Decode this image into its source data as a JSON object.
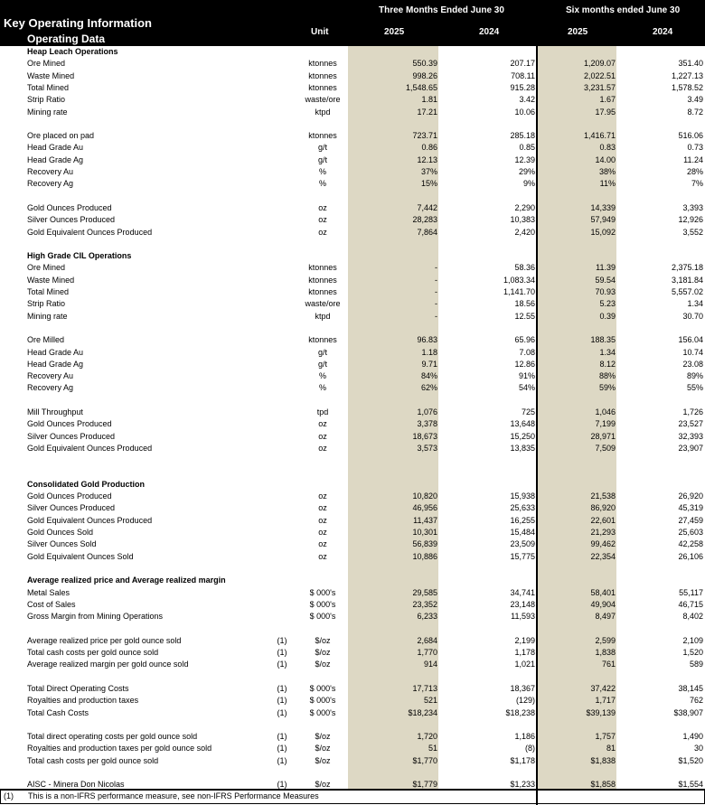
{
  "header": {
    "title": "Key Operating Information",
    "subtitle": "Operating Data",
    "unit_label": "Unit",
    "three_months": "Three Months Ended June 30",
    "six_months": "Six months ended June 30",
    "years": [
      "2025",
      "2024",
      "2025",
      "2024"
    ]
  },
  "colors": {
    "header_bg": "#000000",
    "shade": "#ddd8c4"
  },
  "rows": [
    {
      "heading": "Heap Leach Operations"
    },
    {
      "label": "Ore Mined",
      "unit": "ktonnes",
      "values": [
        "550.39",
        "207.17",
        "1,209.07",
        "351.40"
      ]
    },
    {
      "label": "Waste Mined",
      "unit": "ktonnes",
      "values": [
        "998.26",
        "708.11",
        "2,022.51",
        "1,227.13"
      ]
    },
    {
      "label": "Total Mined",
      "unit": "ktonnes",
      "values": [
        "1,548.65",
        "915.28",
        "3,231.57",
        "1,578.52"
      ]
    },
    {
      "label": "Strip Ratio",
      "unit": "waste/ore",
      "values": [
        "1.81",
        "3.42",
        "1.67",
        "3.49"
      ]
    },
    {
      "label": "Mining rate",
      "unit": "ktpd",
      "values": [
        "17.21",
        "10.06",
        "17.95",
        "8.72"
      ]
    },
    null,
    {
      "label": "Ore placed on pad",
      "unit": "ktonnes",
      "values": [
        "723.71",
        "285.18",
        "1,416.71",
        "516.06"
      ]
    },
    {
      "label": "Head Grade Au",
      "unit": "g/t",
      "values": [
        "0.86",
        "0.85",
        "0.83",
        "0.73"
      ]
    },
    {
      "label": "Head Grade Ag",
      "unit": "g/t",
      "values": [
        "12.13",
        "12.39",
        "14.00",
        "11.24"
      ]
    },
    {
      "label": "Recovery Au",
      "unit": "%",
      "values": [
        "37%",
        "29%",
        "38%",
        "28%"
      ]
    },
    {
      "label": "Recovery Ag",
      "unit": "%",
      "values": [
        "15%",
        "9%",
        "11%",
        "7%"
      ]
    },
    null,
    {
      "label": "Gold Ounces Produced",
      "unit": "oz",
      "values": [
        "7,442",
        "2,290",
        "14,339",
        "3,393"
      ]
    },
    {
      "label": "Silver Ounces Produced",
      "unit": "oz",
      "values": [
        "28,283",
        "10,383",
        "57,949",
        "12,926"
      ]
    },
    {
      "label": "Gold Equivalent Ounces Produced",
      "unit": "oz",
      "values": [
        "7,864",
        "2,420",
        "15,092",
        "3,552"
      ]
    },
    null,
    {
      "heading": "High Grade CIL Operations"
    },
    {
      "label": "Ore Mined",
      "unit": "ktonnes",
      "values": [
        "-",
        "58.36",
        "11.39",
        "2,375.18"
      ]
    },
    {
      "label": "Waste Mined",
      "unit": "ktonnes",
      "values": [
        "-",
        "1,083.34",
        "59.54",
        "3,181.84"
      ]
    },
    {
      "label": "Total Mined",
      "unit": "ktonnes",
      "values": [
        "-",
        "1,141.70",
        "70.93",
        "5,557.02"
      ]
    },
    {
      "label": "Strip Ratio",
      "unit": "waste/ore",
      "values": [
        "-",
        "18.56",
        "5.23",
        "1.34"
      ]
    },
    {
      "label": "Mining rate",
      "unit": "ktpd",
      "values": [
        "-",
        "12.55",
        "0.39",
        "30.70"
      ]
    },
    null,
    {
      "label": "Ore Milled",
      "unit": "ktonnes",
      "values": [
        "96.83",
        "65.96",
        "188.35",
        "156.04"
      ]
    },
    {
      "label": "Head Grade Au",
      "unit": "g/t",
      "values": [
        "1.18",
        "7.08",
        "1.34",
        "10.74"
      ]
    },
    {
      "label": "Head Grade Ag",
      "unit": "g/t",
      "values": [
        "9.71",
        "12.86",
        "8.12",
        "23.08"
      ]
    },
    {
      "label": "Recovery Au",
      "unit": "%",
      "values": [
        "84%",
        "91%",
        "88%",
        "89%"
      ]
    },
    {
      "label": "Recovery Ag",
      "unit": "%",
      "values": [
        "62%",
        "54%",
        "59%",
        "55%"
      ]
    },
    null,
    {
      "label": "Mill Throughput",
      "unit": "tpd",
      "values": [
        "1,076",
        "725",
        "1,046",
        "1,726"
      ]
    },
    {
      "label": "Gold Ounces Produced",
      "unit": "oz",
      "values": [
        "3,378",
        "13,648",
        "7,199",
        "23,527"
      ]
    },
    {
      "label": "Silver Ounces Produced",
      "unit": "oz",
      "values": [
        "18,673",
        "15,250",
        "28,971",
        "32,393"
      ]
    },
    {
      "label": "Gold Equivalent Ounces Produced",
      "unit": "oz",
      "values": [
        "3,573",
        "13,835",
        "7,509",
        "23,907"
      ]
    },
    null,
    null,
    {
      "heading": "Consolidated Gold Production"
    },
    {
      "label": "Gold Ounces Produced",
      "unit": "oz",
      "values": [
        "10,820",
        "15,938",
        "21,538",
        "26,920"
      ]
    },
    {
      "label": "Silver Ounces Produced",
      "unit": "oz",
      "values": [
        "46,956",
        "25,633",
        "86,920",
        "45,319"
      ]
    },
    {
      "label": "Gold Equivalent Ounces Produced",
      "unit": "oz",
      "values": [
        "11,437",
        "16,255",
        "22,601",
        "27,459"
      ]
    },
    {
      "label": "Gold Ounces Sold",
      "unit": "oz",
      "values": [
        "10,301",
        "15,484",
        "21,293",
        "25,603"
      ]
    },
    {
      "label": "Silver Ounces Sold",
      "unit": "oz",
      "values": [
        "56,839",
        "23,509",
        "99,462",
        "42,258"
      ]
    },
    {
      "label": "Gold Equivalent Ounces Sold",
      "unit": "oz",
      "values": [
        "10,886",
        "15,775",
        "22,354",
        "26,106"
      ]
    },
    null,
    {
      "heading": "Average realized price and Average realized margin"
    },
    {
      "label": "Metal Sales",
      "unit": "$ 000's",
      "values": [
        "29,585",
        "34,741",
        "58,401",
        "55,117"
      ]
    },
    {
      "label": "Cost of Sales",
      "unit": "$ 000's",
      "values": [
        "23,352",
        "23,148",
        "49,904",
        "46,715"
      ]
    },
    {
      "label": "Gross Margin from Mining Operations",
      "unit": "$ 000's",
      "values": [
        "6,233",
        "11,593",
        "8,497",
        "8,402"
      ]
    },
    null,
    {
      "label": "Average realized price per gold ounce sold",
      "note": "(1)",
      "unit": "$/oz",
      "values": [
        "2,684",
        "2,199",
        "2,599",
        "2,109"
      ]
    },
    {
      "label": "Total cash costs per gold ounce sold",
      "note": "(1)",
      "unit": "$/oz",
      "values": [
        "1,770",
        "1,178",
        "1,838",
        "1,520"
      ]
    },
    {
      "label": "Average realized margin per gold ounce sold",
      "note": "(1)",
      "unit": "$/oz",
      "values": [
        "914",
        "1,021",
        "761",
        "589"
      ]
    },
    null,
    {
      "label": "Total Direct Operating Costs",
      "note": "(1)",
      "unit": "$ 000's",
      "values": [
        "17,713",
        "18,367",
        "37,422",
        "38,145"
      ]
    },
    {
      "label": "Royalties and production taxes",
      "note": "(1)",
      "unit": "$ 000's",
      "values": [
        "521",
        "(129)",
        "1,717",
        "762"
      ]
    },
    {
      "label": "Total Cash Costs",
      "note": "(1)",
      "unit": "$ 000's",
      "values": [
        "$18,234",
        "$18,238",
        "$39,139",
        "$38,907"
      ]
    },
    null,
    {
      "label": "Total direct operating costs per gold ounce sold",
      "note": "(1)",
      "unit": "$/oz",
      "values": [
        "1,720",
        "1,186",
        "1,757",
        "1,490"
      ]
    },
    {
      "label": "Royalties and production taxes per gold ounce sold",
      "note": "(1)",
      "unit": "$/oz",
      "values": [
        "51",
        "(8)",
        "81",
        "30"
      ]
    },
    {
      "label": "Total cash costs per gold ounce sold",
      "note": "(1)",
      "unit": "$/oz",
      "values": [
        "$1,770",
        "$1,178",
        "$1,838",
        "$1,520"
      ]
    },
    null,
    {
      "label": "AISC - Minera Don Nicolas",
      "note": "(1)",
      "unit": "$/oz",
      "values": [
        "$1,779",
        "$1,233",
        "$1,858",
        "$1,554"
      ]
    }
  ],
  "footnote": {
    "marker": "(1)",
    "text": "This is a non-IFRS performance measure, see non-IFRS Performance Measures"
  }
}
